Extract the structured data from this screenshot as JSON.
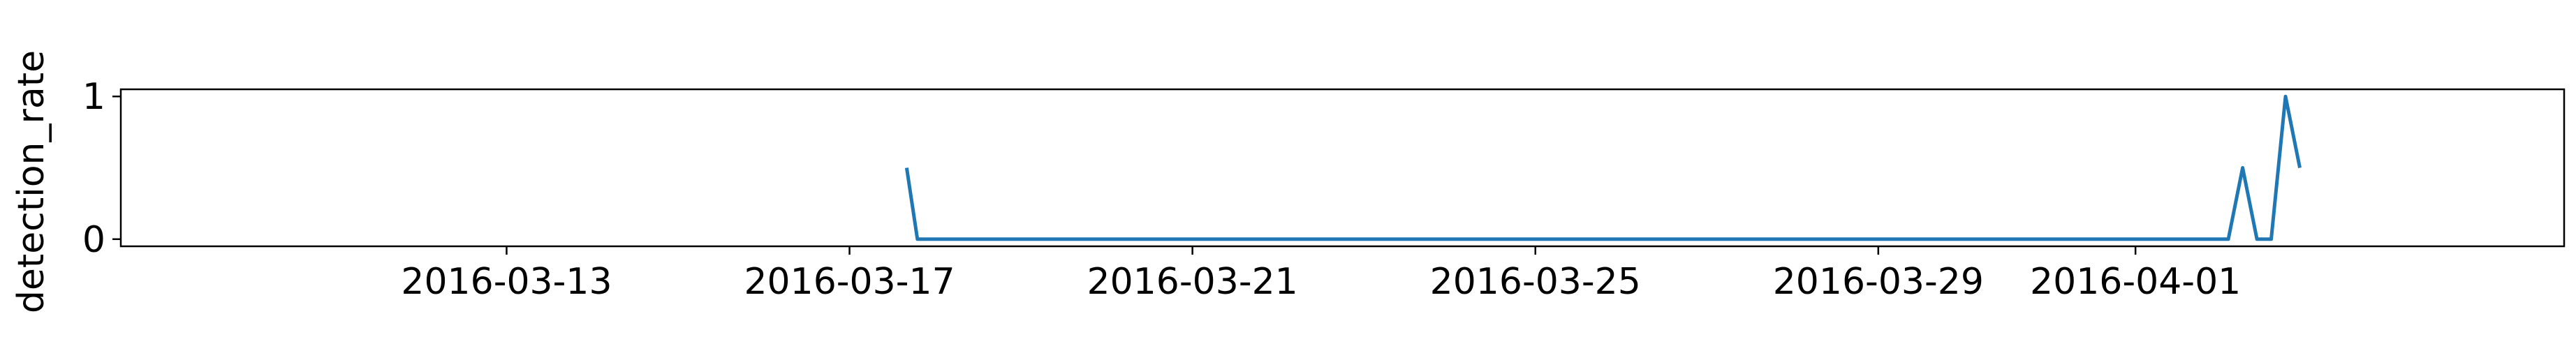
{
  "chart_data": {
    "type": "line",
    "title": "",
    "xlabel": "",
    "ylabel": "detection_rate",
    "grid": false,
    "legend": "none",
    "x_range": [
      "2016-03-08T12:00",
      "2016-04-06T00:00"
    ],
    "ylim": [
      -0.05,
      1.05
    ],
    "x_ticks": [
      "2016-03-13",
      "2016-03-17",
      "2016-03-21",
      "2016-03-25",
      "2016-03-29",
      "2016-04-01"
    ],
    "y_ticks": [
      0,
      1
    ],
    "series": [
      {
        "color": "#1f77b4",
        "points": [
          {
            "x": "2016-03-17T16:00",
            "y": 0.5
          },
          {
            "x": "2016-03-17T19:00",
            "y": 0.0
          },
          {
            "x": "2016-04-02T02:00",
            "y": 0.0
          },
          {
            "x": "2016-04-02T06:00",
            "y": 0.5
          },
          {
            "x": "2016-04-02T10:00",
            "y": 0.0
          },
          {
            "x": "2016-04-02T14:00",
            "y": 0.0
          },
          {
            "x": "2016-04-02T18:00",
            "y": 1.0
          },
          {
            "x": "2016-04-02T22:00",
            "y": 0.5
          }
        ]
      }
    ]
  }
}
